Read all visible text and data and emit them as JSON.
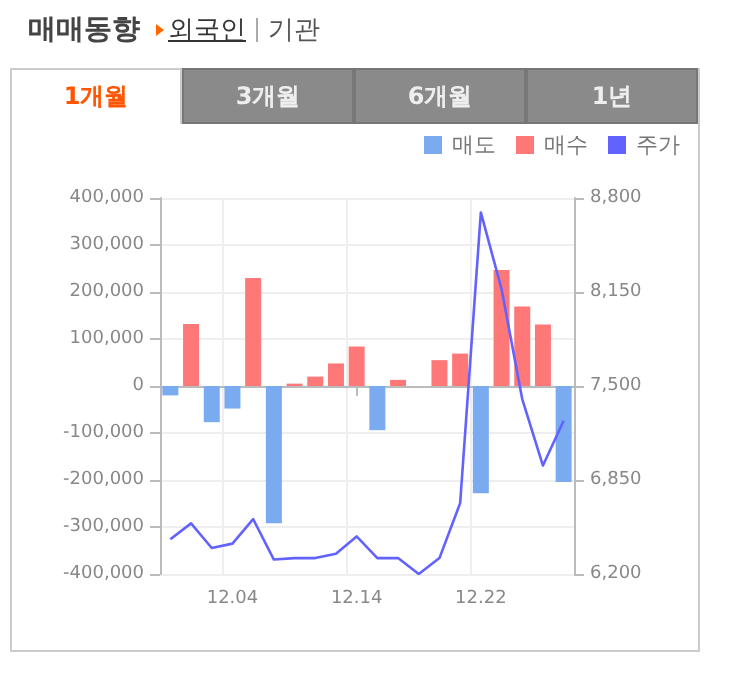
{
  "chart_data": {
    "type": "bar",
    "title": "매매동향",
    "annotations": [
      "외국인",
      "기관",
      "1개월",
      "3개월",
      "6개월",
      "1년"
    ],
    "categories": [
      null,
      null,
      null,
      "12.04",
      null,
      null,
      null,
      null,
      null,
      "12.14",
      null,
      null,
      null,
      null,
      null,
      "12.22",
      null,
      null,
      null,
      null
    ],
    "stacked": true,
    "legend": "top right",
    "grid": true,
    "series": [
      {
        "name": "매도",
        "color": "#7aaaf0",
        "values": [
          -20000,
          null,
          -77000,
          -48000,
          null,
          -292000,
          null,
          null,
          null,
          null,
          -94000,
          null,
          null,
          null,
          null,
          -228000,
          null,
          null,
          null,
          -204000
        ]
      },
      {
        "name": "매수",
        "color": "#ff7878",
        "values": [
          null,
          132000,
          null,
          null,
          230000,
          null,
          5000,
          20000,
          48000,
          84000,
          null,
          13000,
          null,
          55000,
          69000,
          null,
          247000,
          169000,
          131000,
          null
        ]
      },
      {
        "name": "주가",
        "type": "line",
        "axis": "y2",
        "color": "#6262ff",
        "marker": "none",
        "values": [
          6440,
          6550,
          6380,
          6410,
          6580,
          6300,
          6310,
          6310,
          6340,
          6460,
          6310,
          6310,
          6200,
          6310,
          6690,
          8700,
          8170,
          7410,
          6950,
          7260
        ]
      }
    ],
    "ylim": [
      -400000,
      400000
    ],
    "yticks": [
      {
        "value": -400000,
        "label": "-400,000"
      },
      {
        "value": -300000,
        "label": "-300,000"
      },
      {
        "value": -200000,
        "label": "-200,000"
      },
      {
        "value": -100000,
        "label": "-100,000"
      },
      0,
      {
        "value": 100000,
        "label": "100,000"
      },
      {
        "value": 200000,
        "label": "200,000"
      },
      {
        "value": 300000,
        "label": "300,000"
      },
      {
        "value": 400000,
        "label": "400,000"
      }
    ],
    "y2lim": [
      6200,
      8800
    ],
    "y2ticks": [
      {
        "value": 6200,
        "label": "6,200"
      },
      {
        "value": 6850,
        "label": "6,850"
      },
      {
        "value": 7500,
        "label": "7,500"
      },
      {
        "value": 8150,
        "label": "8,150"
      },
      {
        "value": 8800,
        "label": "8,800"
      }
    ]
  }
}
